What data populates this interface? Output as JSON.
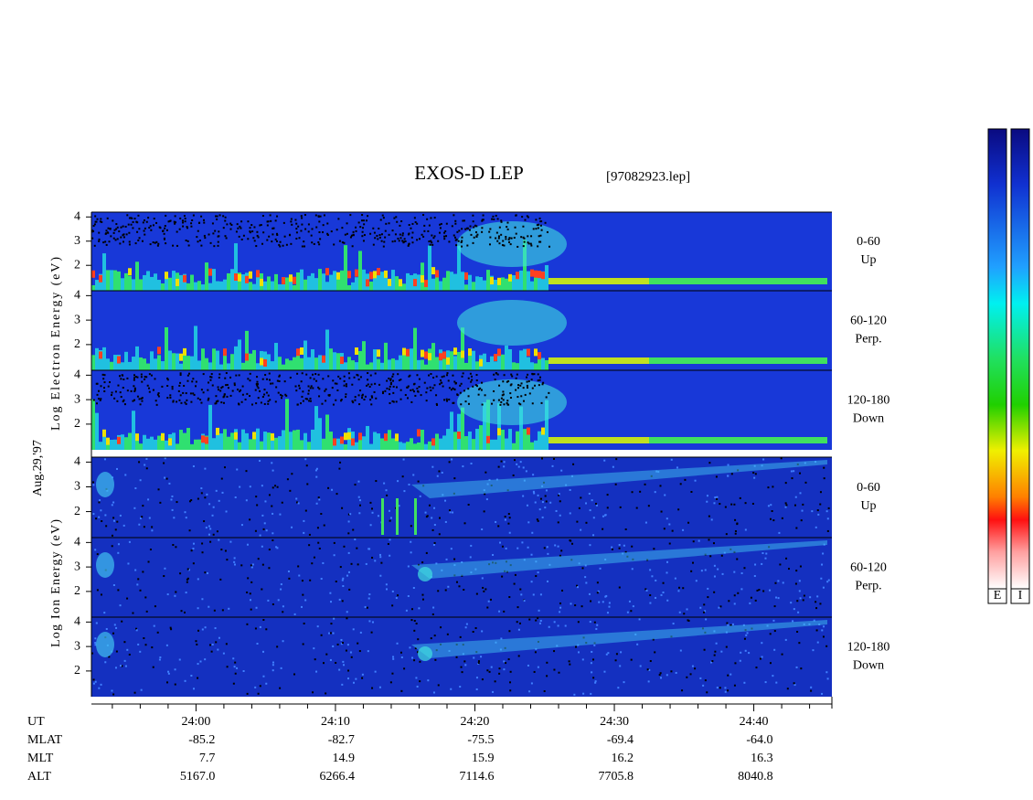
{
  "header": {
    "title": "EXOS-D LEP",
    "file": "[97082923.lep]",
    "date": "Aug.29,'97"
  },
  "electron": {
    "axis_label": "Log Electron Energy (eV)",
    "ylim": [
      0.95,
      4.2
    ],
    "panels": [
      {
        "yticks": [
          2,
          3,
          4
        ],
        "angle": "0-60",
        "direction": "Up"
      },
      {
        "yticks": [
          2,
          3,
          4
        ],
        "angle": "60-120",
        "direction": "Perp."
      },
      {
        "yticks": [
          2,
          3,
          4
        ],
        "angle": "120-180",
        "direction": "Down"
      }
    ]
  },
  "ion": {
    "axis_label": "Log Ion Energy (eV)",
    "ylim": [
      0.95,
      4.2
    ],
    "panels": [
      {
        "yticks": [
          2,
          3,
          4
        ],
        "angle": "0-60",
        "direction": "Up"
      },
      {
        "yticks": [
          2,
          3,
          4
        ],
        "angle": "60-120",
        "direction": "Perp."
      },
      {
        "yticks": [
          2,
          3,
          4
        ],
        "angle": "120-180",
        "direction": "Down"
      }
    ]
  },
  "time_axis": {
    "name": "UT",
    "xlim": [
      1432.5,
      1485.6
    ],
    "xticks": [
      {
        "value": 1440,
        "label": "24:00"
      },
      {
        "value": 1450,
        "label": "24:10"
      },
      {
        "value": 1460,
        "label": "24:20"
      },
      {
        "value": 1470,
        "label": "24:30"
      },
      {
        "value": 1480,
        "label": "24:40"
      }
    ],
    "minor_ticks": [
      1434,
      1436,
      1438,
      1442,
      1444,
      1446,
      1448,
      1452,
      1454,
      1456,
      1458,
      1462,
      1464,
      1466,
      1468,
      1472,
      1474,
      1476,
      1478,
      1482,
      1484
    ]
  },
  "ephemeris": [
    {
      "name": "MLAT",
      "values": [
        "-85.2",
        "-82.7",
        "-75.5",
        "-69.4",
        "-64.0"
      ]
    },
    {
      "name": "MLT",
      "values": [
        "7.7",
        "14.9",
        "15.9",
        "16.2",
        "16.3"
      ]
    },
    {
      "name": "ALT",
      "values": [
        "5167.0",
        "6266.4",
        "7114.6",
        "7705.8",
        "8040.8"
      ]
    }
  ],
  "colorbars": [
    {
      "label": "E"
    },
    {
      "label": "I"
    }
  ]
}
